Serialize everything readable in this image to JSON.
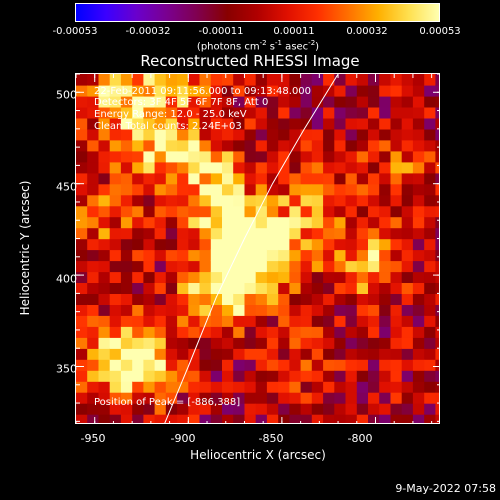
{
  "colorbar": {
    "ticks": [
      "-0.00053",
      "-0.00032",
      "-0.00011",
      "0.00011",
      "0.00032",
      "0.00053"
    ],
    "unit_label": "(photons cm",
    "unit_exp1": "-2",
    "unit_mid1": " s",
    "unit_exp2": "-1",
    "unit_mid2": " asec",
    "unit_exp3": "-2",
    "unit_end": ")",
    "colors": [
      "#0000ff",
      "#3b00ff",
      "#6a00cc",
      "#7a0090",
      "#800050",
      "#880000",
      "#b00000",
      "#e01000",
      "#ff3000",
      "#ff7000",
      "#ffb000",
      "#ffe050",
      "#ffffb0"
    ]
  },
  "chart_data": {
    "type": "heatmap",
    "title": "Reconstructed RHESSI Image",
    "xlabel": "Heliocentric X (arcsec)",
    "ylabel": "Heliocentric Y (arcsec)",
    "xlim": [
      -960,
      -765
    ],
    "ylim": [
      318,
      510
    ],
    "xticks": [
      "-950",
      "-900",
      "-850",
      "-800"
    ],
    "yticks": [
      "350",
      "400",
      "450",
      "500"
    ],
    "zlim": [
      -0.00053,
      0.00053
    ],
    "peak_position": [
      -886,
      388
    ],
    "limb_curve": [
      [
        -913,
        318
      ],
      [
        -900,
        350
      ],
      [
        -885,
        388
      ],
      [
        -870,
        420
      ],
      [
        -855,
        450
      ],
      [
        -838,
        480
      ],
      [
        -820,
        510
      ]
    ],
    "sources": [
      {
        "x": -880,
        "y": 425,
        "value": 0.00053
      },
      {
        "x": -886,
        "y": 388,
        "value": 0.00053
      },
      {
        "x": -870,
        "y": 405,
        "value": 0.00045
      },
      {
        "x": -895,
        "y": 455,
        "value": 0.0004
      },
      {
        "x": -920,
        "y": 470,
        "value": 0.0004
      },
      {
        "x": -940,
        "y": 495,
        "value": 0.00045
      },
      {
        "x": -855,
        "y": 415,
        "value": 0.0003
      },
      {
        "x": -808,
        "y": 405,
        "value": 0.0004
      },
      {
        "x": -835,
        "y": 440,
        "value": 0.00025
      },
      {
        "x": -940,
        "y": 355,
        "value": 0.00035
      },
      {
        "x": -928,
        "y": 348,
        "value": 0.0004
      },
      {
        "x": -950,
        "y": 430,
        "value": 0.00025
      },
      {
        "x": -905,
        "y": 505,
        "value": 0.0003
      },
      {
        "x": -790,
        "y": 455,
        "value": 0.0002
      },
      {
        "x": -840,
        "y": 350,
        "value": 0.00015
      }
    ],
    "annotations": [
      "22-Feb-2011 09:11:56.000 to 09:13:48.000",
      "Detectors: 3F 4F 5F 6F 7F 8F, Att 0",
      "Energy Range: 12.0 - 25.0 keV",
      "Clean     Total counts: 2.24E+03",
      "Position of Peak = [-886,388]"
    ]
  },
  "footer": {
    "datestamp": "9-May-2022 07:58"
  }
}
